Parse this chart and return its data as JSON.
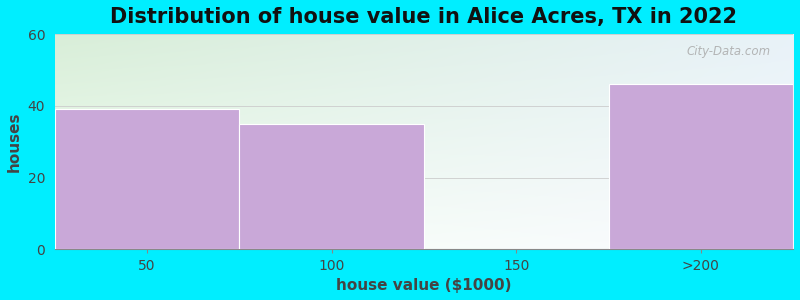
{
  "title": "Distribution of house value in Alice Acres, TX in 2022",
  "xlabel": "house value ($1000)",
  "ylabel": "houses",
  "categories": [
    "50",
    "100",
    "150",
    ">200"
  ],
  "bin_edges": [
    0,
    1,
    2,
    3,
    4
  ],
  "values": [
    39,
    35,
    0,
    46
  ],
  "bar_color": "#c9a8d8",
  "ylim": [
    0,
    60
  ],
  "yticks": [
    0,
    20,
    40,
    60
  ],
  "background_outer": "#00eeff",
  "plot_bg_top_left": "#d8eed8",
  "plot_bg_right": "#f0f4f8",
  "plot_bg_bottom": "#ffffff",
  "title_fontsize": 15,
  "axis_label_fontsize": 11,
  "tick_fontsize": 10,
  "watermark": "City-Data.com"
}
